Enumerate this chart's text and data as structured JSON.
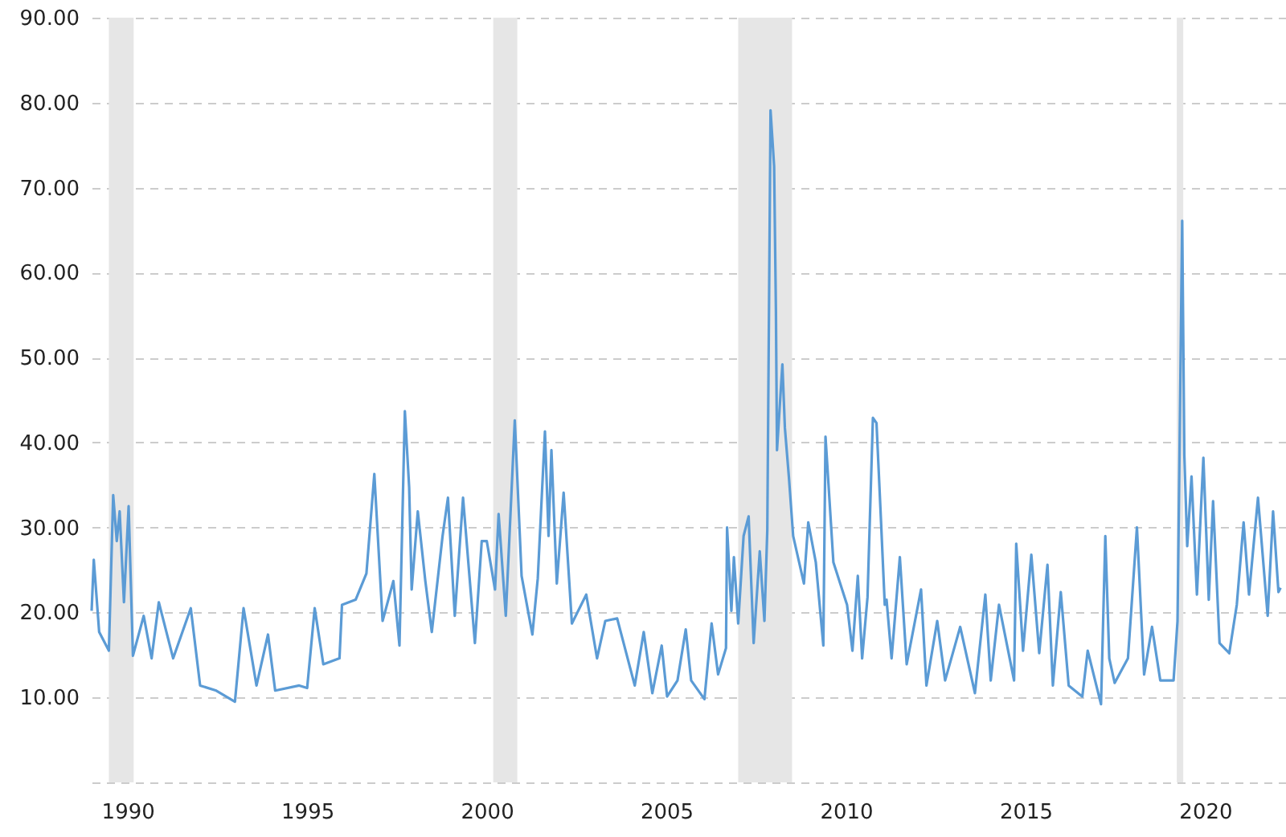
{
  "chart_data": {
    "type": "line",
    "x": [
      1989.0,
      1989.06,
      1989.21,
      1989.48,
      1989.6,
      1989.7,
      1989.78,
      1989.9,
      1990.03,
      1990.15,
      1990.45,
      1990.67,
      1990.87,
      1991.27,
      1991.76,
      1992.02,
      1992.47,
      1992.99,
      1993.23,
      1993.59,
      1993.91,
      1994.11,
      1994.78,
      1995.0,
      1995.21,
      1995.45,
      1995.9,
      1995.97,
      1996.35,
      1996.65,
      1996.87,
      1997.1,
      1997.4,
      1997.57,
      1997.72,
      1997.84,
      1997.91,
      1998.08,
      1998.29,
      1998.47,
      1998.77,
      1998.92,
      1999.11,
      1999.34,
      1999.67,
      1999.86,
      2000.0,
      2000.23,
      2000.33,
      2000.53,
      2000.78,
      2000.97,
      2001.27,
      2001.42,
      2001.62,
      2001.72,
      2001.8,
      2001.95,
      2002.14,
      2002.37,
      2002.77,
      2003.07,
      2003.3,
      2003.63,
      2004.12,
      2004.37,
      2004.61,
      2004.87,
      2005.02,
      2005.31,
      2005.54,
      2005.69,
      2006.06,
      2006.26,
      2006.44,
      2006.66,
      2006.69,
      2006.81,
      2006.88,
      2007.0,
      2007.15,
      2007.29,
      2007.43,
      2007.6,
      2007.73,
      2007.81,
      2007.9,
      2008.0,
      2008.05,
      2008.08,
      2008.23,
      2008.3,
      2008.41,
      2008.53,
      2008.83,
      2008.95,
      2009.16,
      2009.37,
      2009.43,
      2009.65,
      2010.03,
      2010.18,
      2010.33,
      2010.45,
      2010.6,
      2010.75,
      2010.85,
      2010.96,
      2011.08,
      2011.13,
      2011.27,
      2011.5,
      2011.69,
      2012.09,
      2012.24,
      2012.54,
      2012.76,
      2013.18,
      2013.59,
      2013.88,
      2014.03,
      2014.26,
      2014.68,
      2014.74,
      2014.93,
      2015.16,
      2015.38,
      2015.61,
      2015.76,
      2015.98,
      2016.2,
      2016.58,
      2016.73,
      2017.1,
      2017.22,
      2017.33,
      2017.48,
      2017.85,
      2018.1,
      2018.3,
      2018.52,
      2018.75,
      2019.12,
      2019.23,
      2019.29,
      2019.36,
      2019.42,
      2019.5,
      2019.62,
      2019.77,
      2019.95,
      2020.1,
      2020.22,
      2020.4,
      2020.67,
      2020.88,
      2021.07,
      2021.22,
      2021.47,
      2021.74,
      2021.89,
      2022.04,
      2022.1
    ],
    "series": [
      {
        "color": "#5b9bd5",
        "values": [
          20.2,
          26.2,
          17.7,
          15.5,
          33.8,
          28.4,
          31.9,
          21.2,
          32.5,
          14.9,
          19.6,
          14.6,
          21.2,
          14.6,
          20.5,
          11.4,
          10.8,
          9.5,
          20.5,
          11.4,
          17.4,
          10.8,
          11.4,
          11.1,
          20.5,
          13.9,
          14.6,
          20.9,
          21.5,
          24.6,
          36.3,
          19.0,
          23.7,
          16.1,
          43.7,
          34.7,
          22.7,
          31.9,
          23.7,
          17.7,
          29.0,
          33.5,
          19.6,
          33.5,
          16.4,
          28.4,
          28.4,
          22.7,
          31.6,
          19.6,
          42.6,
          24.3,
          17.4,
          24.0,
          41.3,
          29.0,
          39.1,
          23.4,
          34.1,
          18.7,
          22.1,
          14.6,
          19.0,
          19.3,
          11.4,
          17.7,
          10.5,
          16.1,
          10.1,
          12.0,
          18.0,
          12.0,
          9.8,
          18.7,
          12.7,
          15.8,
          30.0,
          20.2,
          26.5,
          18.7,
          29.0,
          31.3,
          16.4,
          27.2,
          19.0,
          29.7,
          79.1,
          72.5,
          55.5,
          39.1,
          49.2,
          41.7,
          36.0,
          29.0,
          23.4,
          30.6,
          25.9,
          16.1,
          40.7,
          25.9,
          20.9,
          15.5,
          24.3,
          14.6,
          21.8,
          42.9,
          42.3,
          32.2,
          20.9,
          21.5,
          14.6,
          26.5,
          13.9,
          22.7,
          11.4,
          19.0,
          12.0,
          18.3,
          10.5,
          22.1,
          12.0,
          20.9,
          12.0,
          28.1,
          15.5,
          26.8,
          15.2,
          25.6,
          11.4,
          22.4,
          11.4,
          10.1,
          15.5,
          9.2,
          29.0,
          14.6,
          11.7,
          14.6,
          30.0,
          12.7,
          18.3,
          12.0,
          12.0,
          19.0,
          40.4,
          66.1,
          38.5,
          27.8,
          36.0,
          22.1,
          38.2,
          21.5,
          33.1,
          16.4,
          15.2,
          20.9,
          30.6,
          22.1,
          33.5,
          19.6,
          31.9,
          22.4,
          22.9
        ]
      }
    ],
    "xlim": [
      1989.0,
      2022.25
    ],
    "xticks": [
      1990,
      1995,
      2000,
      2005,
      2010,
      2015,
      2020
    ],
    "ylim": [
      0,
      90
    ],
    "yticks": [
      {
        "value": 0,
        "label": null
      },
      {
        "value": 10,
        "label": "10.00"
      },
      {
        "value": 20,
        "label": "20.00"
      },
      {
        "value": 30,
        "label": "30.00"
      },
      {
        "value": 40,
        "label": "40.00"
      },
      {
        "value": 50,
        "label": "50.00"
      },
      {
        "value": 60,
        "label": "60.00"
      },
      {
        "value": 70,
        "label": "70.00"
      },
      {
        "value": 80,
        "label": "80.00"
      },
      {
        "value": 90,
        "label": "90.00"
      }
    ],
    "bands": [
      {
        "axis": "x",
        "from": 1989.48,
        "to": 1990.17,
        "color": "#e6e6e6"
      },
      {
        "axis": "x",
        "from": 2000.18,
        "to": 2000.85,
        "color": "#e6e6e6"
      },
      {
        "axis": "x",
        "from": 2007.0,
        "to": 2008.5,
        "color": "#e6e6e6"
      },
      {
        "axis": "x",
        "from": 2019.21,
        "to": 2019.39,
        "color": "#e6e6e6"
      }
    ],
    "grid": "y",
    "line_style": "solid"
  }
}
